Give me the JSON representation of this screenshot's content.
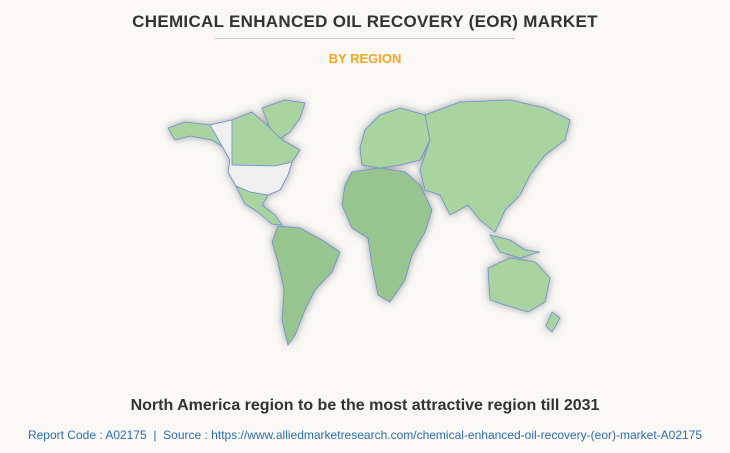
{
  "header": {
    "title": "CHEMICAL ENHANCED OIL RECOVERY (EOR) MARKET",
    "subtitle": "BY REGION"
  },
  "caption": "North America region to be the most attractive region till 2031",
  "footer": "Report Code : A02175  |  Source : https://www.alliedmarketresearch.com/chemical-enhanced-oil-recovery-(eor)-market-A02175"
}
